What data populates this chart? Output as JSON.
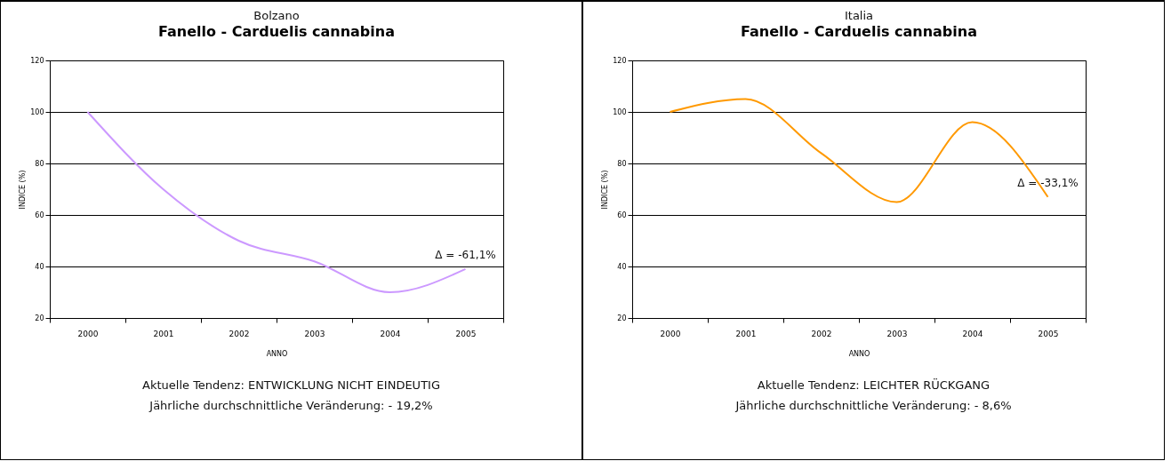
{
  "chart_data": [
    {
      "type": "line",
      "title": "Bolzano",
      "subtitle": "Fanello - Carduelis cannabina",
      "xlabel": "ANNO",
      "ylabel": "INDICE (%)",
      "categories": [
        "2000",
        "2001",
        "2002",
        "2003",
        "2004",
        "2005"
      ],
      "series": [
        {
          "color": "#cc99ff",
          "values": [
            100,
            70,
            50,
            42,
            30,
            39
          ]
        }
      ],
      "ylim": [
        20,
        120
      ],
      "yticks": [
        20,
        40,
        60,
        80,
        100,
        120
      ],
      "grid": "y",
      "annotations": [
        "Δ = -61,1%",
        "Aktuelle Tendenz: ENTWICKLUNG NICHT EINDEUTIG",
        "Jährliche durchschnittliche Veränderung: - 19,2%"
      ]
    },
    {
      "type": "line",
      "title": "Italia",
      "subtitle": "Fanello - Carduelis cannabina",
      "xlabel": "ANNO",
      "ylabel": "INDICE (%)",
      "categories": [
        "2000",
        "2001",
        "2002",
        "2003",
        "2004",
        "2005"
      ],
      "series": [
        {
          "color": "#ff9900",
          "values": [
            100,
            105,
            84,
            65,
            96,
            67
          ]
        }
      ],
      "ylim": [
        20,
        120
      ],
      "yticks": [
        20,
        40,
        60,
        80,
        100,
        120
      ],
      "grid": "y",
      "annotations": [
        "Δ = -33,1%",
        "Aktuelle Tendenz: LEICHTER RÜCKGANG",
        "Jährliche durchschnittliche Veränderung: - 8,6%"
      ]
    }
  ]
}
